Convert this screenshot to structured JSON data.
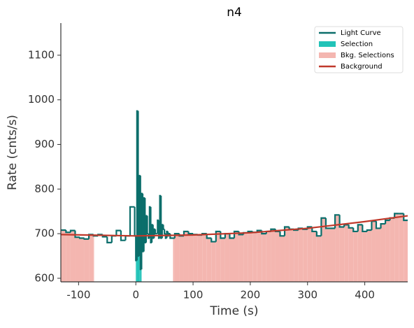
{
  "chart_data": {
    "type": "lightcurve",
    "title": "n4",
    "x_label": "Time (s)",
    "y_label": "Rate (cnts/s)",
    "xlim": [
      -131,
      475
    ],
    "ylim": [
      592,
      1172
    ],
    "xticks": [
      -100,
      0,
      100,
      200,
      300,
      400
    ],
    "yticks": [
      600,
      700,
      800,
      900,
      1000,
      1100
    ],
    "legend_position": "upper right",
    "light_curve": {
      "name": "Light Curve",
      "color": "#0b6e6b",
      "bins": [
        -131,
        -122,
        -114,
        -106,
        -98,
        -90,
        -82,
        -74,
        -66,
        -58,
        -50,
        -42,
        -34,
        -26,
        -18,
        -10,
        -2,
        0,
        2,
        4,
        6,
        8,
        10,
        12,
        14,
        16,
        18,
        20,
        22,
        24,
        26,
        28,
        30,
        32,
        34,
        36,
        38,
        40,
        42,
        44,
        46,
        48,
        50,
        52,
        54,
        56,
        58,
        60,
        68,
        76,
        84,
        92,
        100,
        108,
        116,
        124,
        132,
        140,
        148,
        156,
        164,
        172,
        180,
        188,
        196,
        204,
        212,
        220,
        228,
        236,
        244,
        252,
        260,
        268,
        276,
        284,
        292,
        300,
        308,
        316,
        324,
        332,
        340,
        348,
        356,
        364,
        372,
        380,
        388,
        396,
        404,
        412,
        420,
        428,
        436,
        444,
        452,
        460,
        468,
        475
      ],
      "values": [
        708,
        703,
        707,
        692,
        690,
        688,
        698,
        695,
        698,
        693,
        680,
        695,
        707,
        685,
        695,
        760,
        695,
        640,
        975,
        650,
        830,
        620,
        790,
        660,
        780,
        680,
        740,
        700,
        690,
        760,
        680,
        720,
        690,
        710,
        700,
        700,
        730,
        690,
        785,
        690,
        720,
        710,
        700,
        690,
        705,
        695,
        700,
        690,
        700,
        695,
        705,
        700,
        698,
        697,
        700,
        690,
        682,
        705,
        690,
        700,
        690,
        705,
        698,
        702,
        705,
        703,
        707,
        700,
        705,
        710,
        705,
        695,
        715,
        710,
        708,
        712,
        710,
        715,
        705,
        695,
        735,
        712,
        712,
        742,
        715,
        720,
        713,
        705,
        720,
        705,
        708,
        728,
        712,
        722,
        730,
        735,
        745,
        745,
        730
      ]
    },
    "selection": {
      "name": "Selection",
      "color": "#22c3b8",
      "range": [
        0,
        10
      ]
    },
    "bkg_selections": {
      "name": "Bkg. Selections",
      "color": "#f4b6b0",
      "ranges": [
        [
          -131,
          -73
        ],
        [
          65,
          475
        ]
      ]
    },
    "background": {
      "name": "Background",
      "color": "#c0392b",
      "x": [
        -131,
        0,
        100,
        200,
        300,
        400,
        475
      ],
      "values": [
        698,
        695,
        697,
        702,
        712,
        727,
        740
      ]
    }
  }
}
